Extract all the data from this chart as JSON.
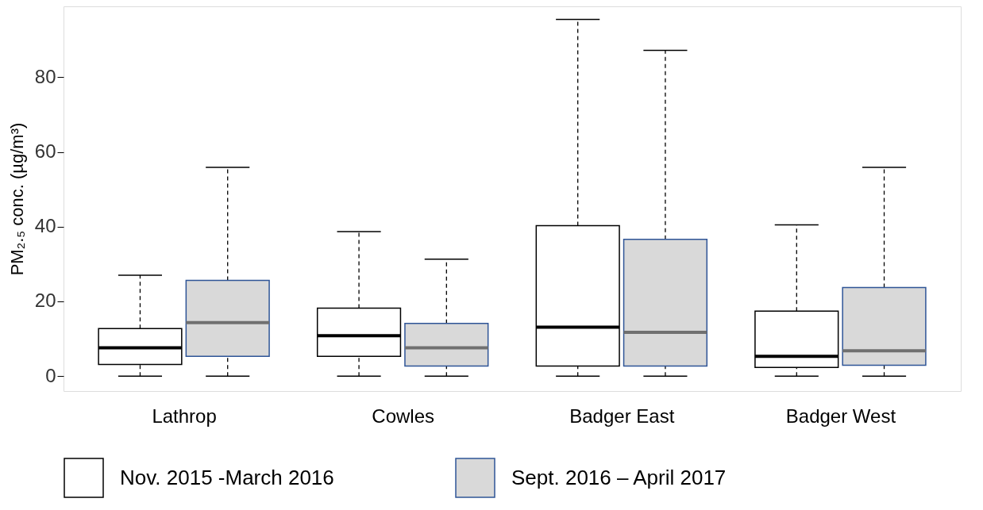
{
  "chart_data": {
    "type": "box",
    "ylabel": "PM₂.₅ conc. (µg/m³)",
    "categories": [
      "Lathrop",
      "Cowles",
      "Badger East",
      "Badger West"
    ],
    "ylim": [
      -4,
      99
    ],
    "yticks": [
      0,
      20,
      40,
      60,
      80
    ],
    "grid": false,
    "legend": "bottom",
    "line_style": "dashed",
    "series": [
      {
        "name": "Nov. 2015 -March 2016",
        "color": "#ffffff",
        "boxes": [
          {
            "low": 0,
            "q1": 3.1,
            "median": 7.6,
            "q3": 12.7,
            "high": 27.0
          },
          {
            "low": 0,
            "q1": 5.3,
            "median": 10.8,
            "q3": 18.2,
            "high": 38.7
          },
          {
            "low": 0,
            "q1": 2.7,
            "median": 13.1,
            "q3": 40.3,
            "high": 95.5
          },
          {
            "low": 0,
            "q1": 2.3,
            "median": 5.3,
            "q3": 17.4,
            "high": 40.5
          }
        ]
      },
      {
        "name": "Sept. 2016 – April 2017",
        "color": "#d9d9d9",
        "boxes": [
          {
            "low": 0,
            "q1": 5.3,
            "median": 14.3,
            "q3": 25.6,
            "high": 55.9
          },
          {
            "low": 0,
            "q1": 2.7,
            "median": 7.6,
            "q3": 14.1,
            "high": 31.3
          },
          {
            "low": 0,
            "q1": 2.7,
            "median": 11.7,
            "q3": 36.6,
            "high": 87.2
          },
          {
            "low": 0,
            "q1": 2.9,
            "median": 6.8,
            "q3": 23.7,
            "high": 55.9
          }
        ]
      }
    ]
  }
}
